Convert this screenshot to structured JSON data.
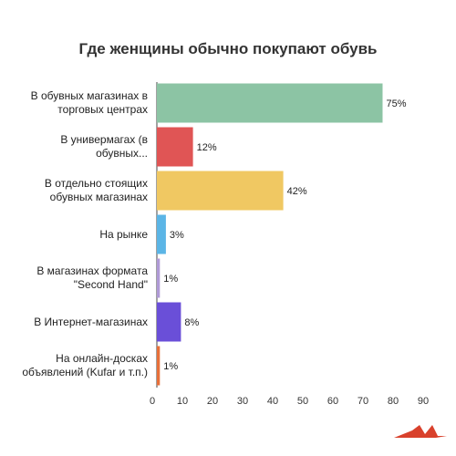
{
  "chart_data": {
    "type": "bar",
    "orientation": "horizontal",
    "title": "Где женщины обычно покупают обувь",
    "categories": [
      "В обувных магазинах в торговых центрах",
      "В универмагах (в обувных...",
      "В отдельно стоящих обувных магазинах",
      "На рынке",
      "В магазинах формата \"Second Hand\"",
      "В Интернет-магазинах",
      "На онлайн-досках объявлений (Kufar и т.п.)"
    ],
    "values": [
      75,
      12,
      42,
      3,
      1,
      8,
      1
    ],
    "value_labels": [
      "75%",
      "12%",
      "42%",
      "3%",
      "1%",
      "8%",
      "1%"
    ],
    "colors": [
      "#8cc4a4",
      "#e05555",
      "#f0c862",
      "#5bb5e6",
      "#b09ad6",
      "#6a4fd8",
      "#e8703a"
    ],
    "xlim": [
      0,
      90
    ],
    "xticks": [
      0,
      10,
      20,
      30,
      40,
      50,
      60,
      70,
      80,
      90
    ],
    "grid": false,
    "legend": "none"
  },
  "logo": {
    "icon": "brand-logo-icon",
    "color": "#d9412c"
  }
}
